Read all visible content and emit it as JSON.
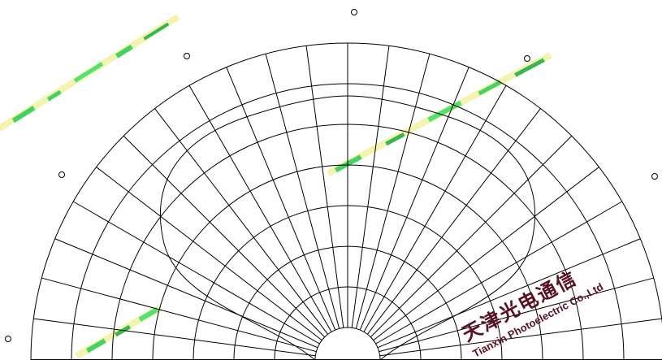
{
  "diagram": {
    "type": "polar-radiation-pattern",
    "watermark": {
      "cjk": "天津光电通信",
      "latin": "Tianxin Photoelectric Co.,Ltd"
    },
    "radial_rings": 8,
    "angular_spokes": 25,
    "colors": {
      "grid": "#000000",
      "watermark": "#5a1020",
      "glitch_green": "#22cc44",
      "glitch_yellow": "#f2f2a0"
    }
  }
}
